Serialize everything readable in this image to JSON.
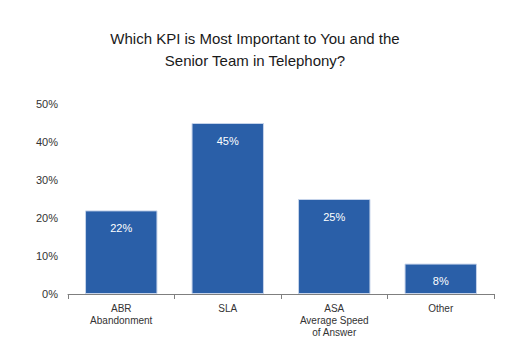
{
  "chart_data": {
    "type": "bar",
    "title": "Which KPI is Most Important to You and the\nSenior Team in Telephony?",
    "categories": [
      "ABR\nAbandonment",
      "SLA",
      "ASA\nAverage Speed\nof Answer",
      "Other"
    ],
    "values": [
      22,
      45,
      25,
      8
    ],
    "value_labels": [
      "22%",
      "45%",
      "25%",
      "8%"
    ],
    "color": "#2a5fa8",
    "ylim": [
      0,
      50
    ],
    "yticks": [
      {
        "value": 0,
        "label": "0%"
      },
      {
        "value": 10,
        "label": "10%"
      },
      {
        "value": 20,
        "label": "20%"
      },
      {
        "value": 30,
        "label": "30%"
      },
      {
        "value": 40,
        "label": "40%"
      },
      {
        "value": 50,
        "label": "50%"
      }
    ],
    "grid": false,
    "data_labels": true
  }
}
